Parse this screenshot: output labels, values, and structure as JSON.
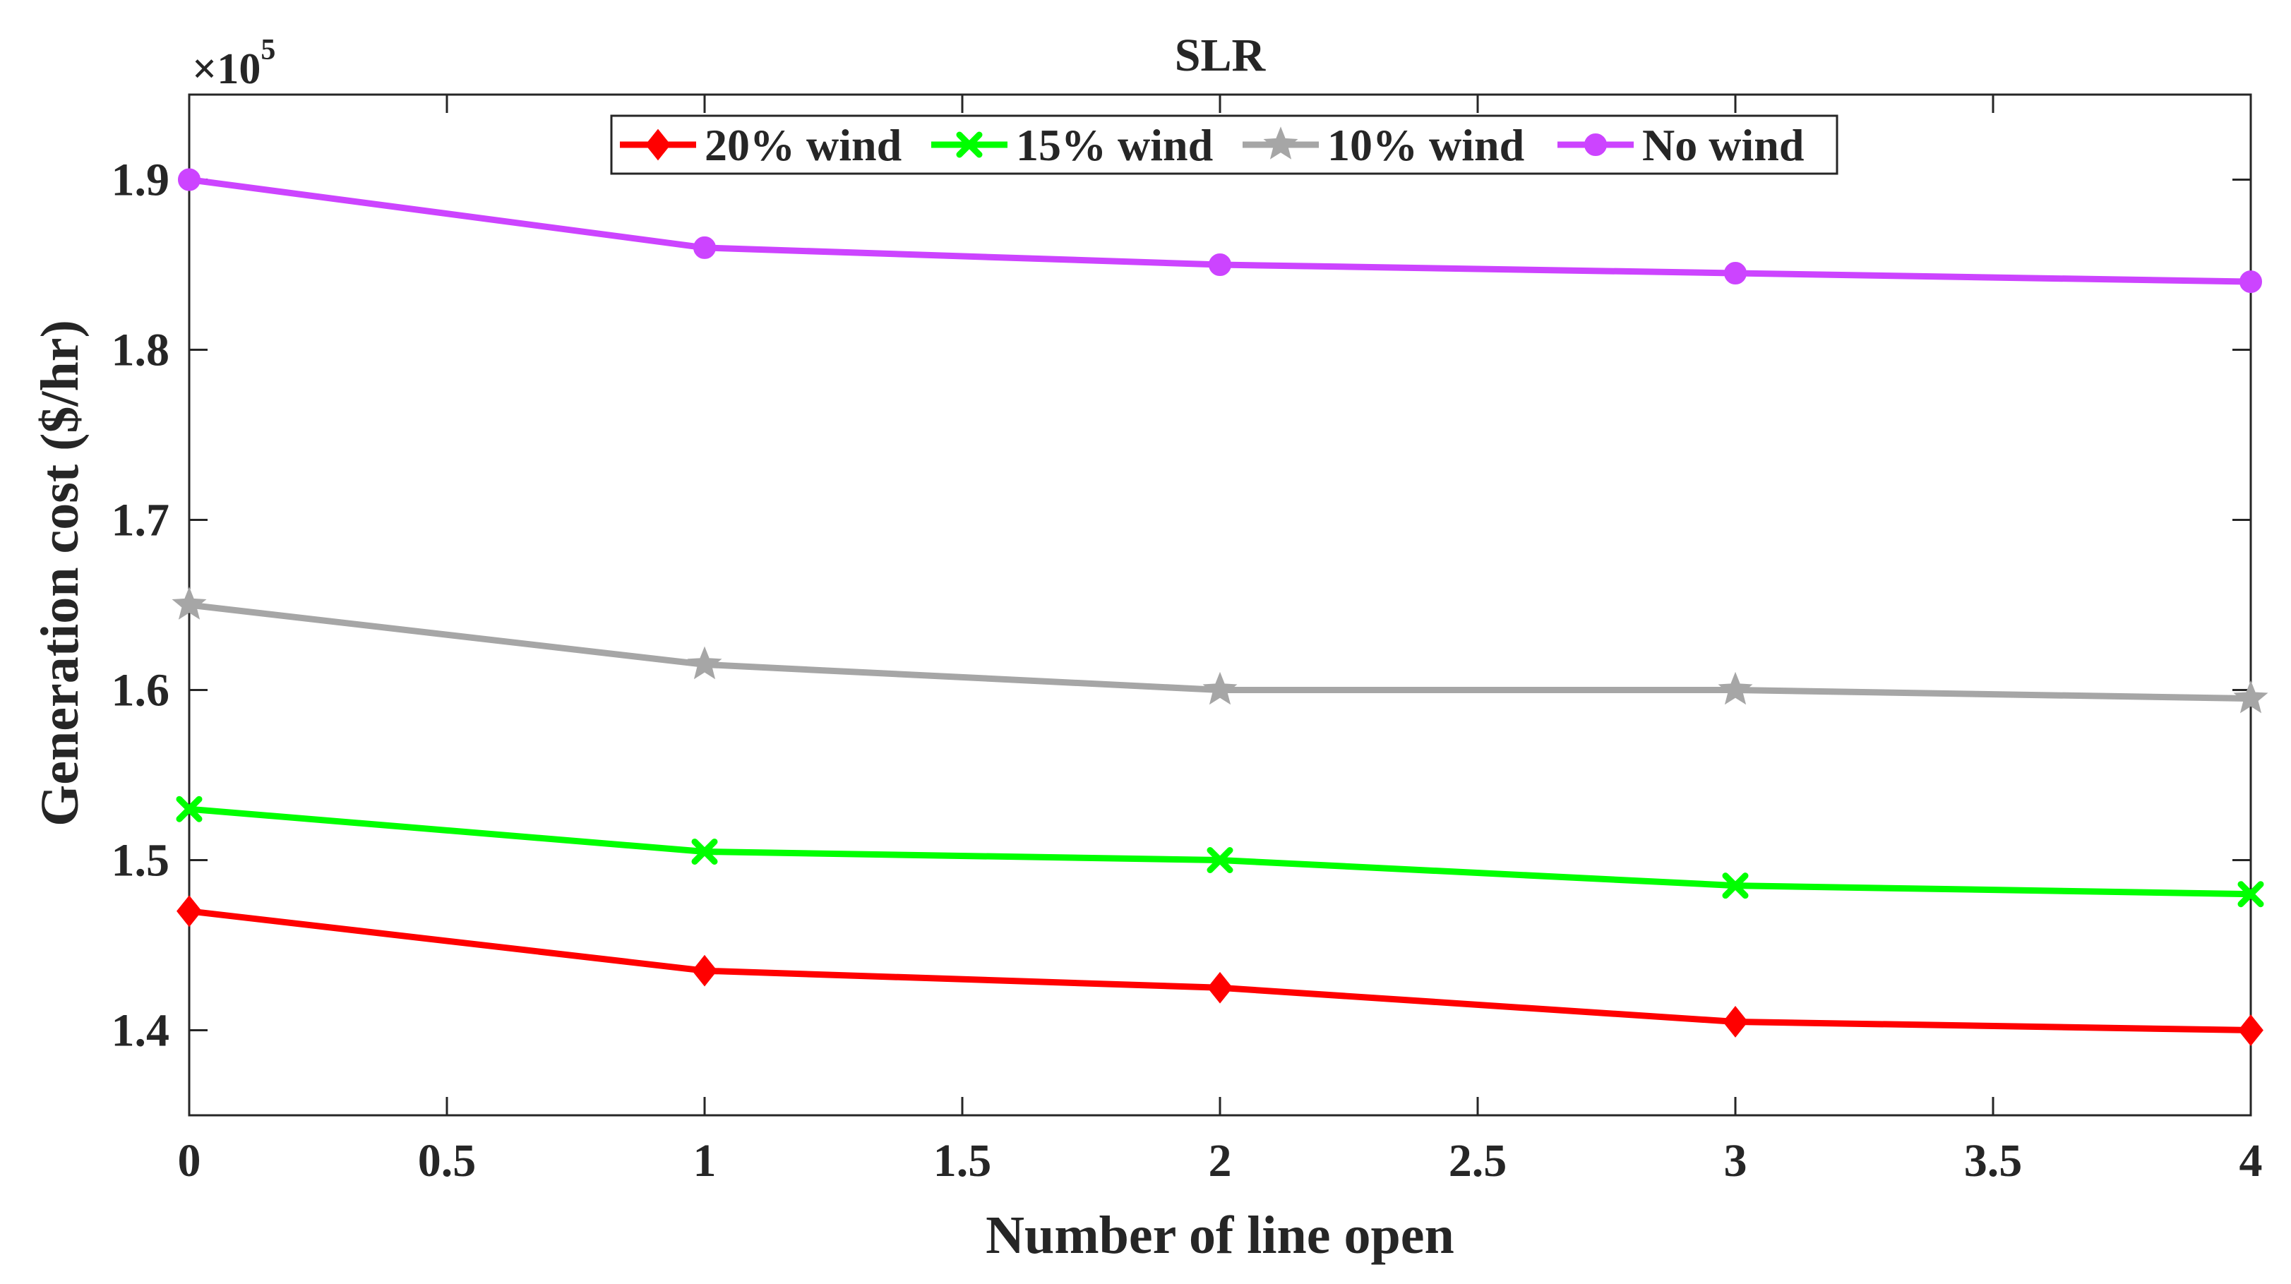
{
  "chart_data": {
    "type": "line",
    "title": "SLR",
    "xlabel": "Number of line open",
    "ylabel": "Generation cost ($/hr)",
    "exponent_label": "×10",
    "exponent_power": "5",
    "xlim": [
      0,
      4
    ],
    "ylim": [
      1.35,
      1.95
    ],
    "xticks": [
      0,
      0.5,
      1,
      1.5,
      2,
      2.5,
      3,
      3.5,
      4
    ],
    "xtick_labels": [
      "0",
      "0.5",
      "1",
      "1.5",
      "2",
      "2.5",
      "3",
      "3.5",
      "4"
    ],
    "yticks": [
      1.4,
      1.5,
      1.6,
      1.7,
      1.8,
      1.9
    ],
    "ytick_labels": [
      "1.4",
      "1.5",
      "1.6",
      "1.7",
      "1.8",
      "1.9"
    ],
    "x": [
      0,
      1,
      2,
      3,
      4
    ],
    "legend_position": "top-center",
    "series": [
      {
        "name": "20% wind",
        "color": "#ff0000",
        "marker": "diamond",
        "values": [
          1.47,
          1.435,
          1.425,
          1.405,
          1.4
        ]
      },
      {
        "name": "15% wind",
        "color": "#00ff00",
        "marker": "x",
        "values": [
          1.53,
          1.505,
          1.5,
          1.485,
          1.48
        ]
      },
      {
        "name": "10% wind",
        "color": "#a6a6a6",
        "marker": "star",
        "values": [
          1.65,
          1.615,
          1.6,
          1.6,
          1.595
        ]
      },
      {
        "name": "No wind",
        "color": "#cc44ff",
        "marker": "circle",
        "values": [
          1.9,
          1.86,
          1.85,
          1.845,
          1.84
        ]
      }
    ]
  }
}
